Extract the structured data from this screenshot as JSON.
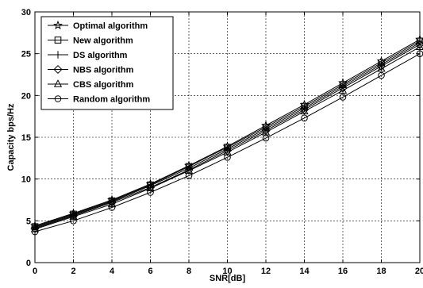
{
  "chart_data": {
    "type": "line",
    "title": "",
    "xlabel": "SNR[dB]",
    "ylabel": "Capacity bps/Hz",
    "xlim": [
      0,
      20
    ],
    "ylim": [
      0,
      30
    ],
    "xticks": [
      0,
      2,
      4,
      6,
      8,
      10,
      12,
      14,
      16,
      18,
      20
    ],
    "yticks": [
      0,
      5,
      10,
      15,
      20,
      25,
      30
    ],
    "grid": true,
    "legend_position": "top-left",
    "x": [
      0,
      2,
      4,
      6,
      8,
      10,
      12,
      14,
      16,
      18,
      20
    ],
    "series": [
      {
        "name": "Optimal algorithm",
        "marker": "star",
        "values": [
          4.4,
          5.9,
          7.5,
          9.4,
          11.6,
          13.9,
          16.4,
          18.9,
          21.5,
          24.1,
          26.7
        ]
      },
      {
        "name": "New algorithm",
        "marker": "square",
        "values": [
          4.3,
          5.8,
          7.4,
          9.3,
          11.5,
          13.8,
          16.2,
          18.7,
          21.3,
          23.9,
          26.5
        ]
      },
      {
        "name": "DS algorithm",
        "marker": "plus",
        "values": [
          4.2,
          5.7,
          7.3,
          9.2,
          11.3,
          13.6,
          16.0,
          18.5,
          21.1,
          23.7,
          26.3
        ]
      },
      {
        "name": "NBS algorithm",
        "marker": "diamond",
        "values": [
          4.1,
          5.6,
          7.2,
          9.0,
          11.1,
          13.4,
          15.8,
          18.3,
          20.9,
          23.5,
          26.1
        ]
      },
      {
        "name": "CBS algorithm",
        "marker": "triangle",
        "values": [
          4.0,
          5.5,
          7.0,
          8.9,
          11.0,
          13.2,
          15.6,
          18.1,
          20.6,
          23.2,
          25.8
        ]
      },
      {
        "name": "Random algorithm",
        "marker": "circle",
        "values": [
          3.7,
          5.0,
          6.6,
          8.4,
          10.4,
          12.6,
          14.9,
          17.3,
          19.8,
          22.4,
          25.0
        ]
      }
    ]
  }
}
